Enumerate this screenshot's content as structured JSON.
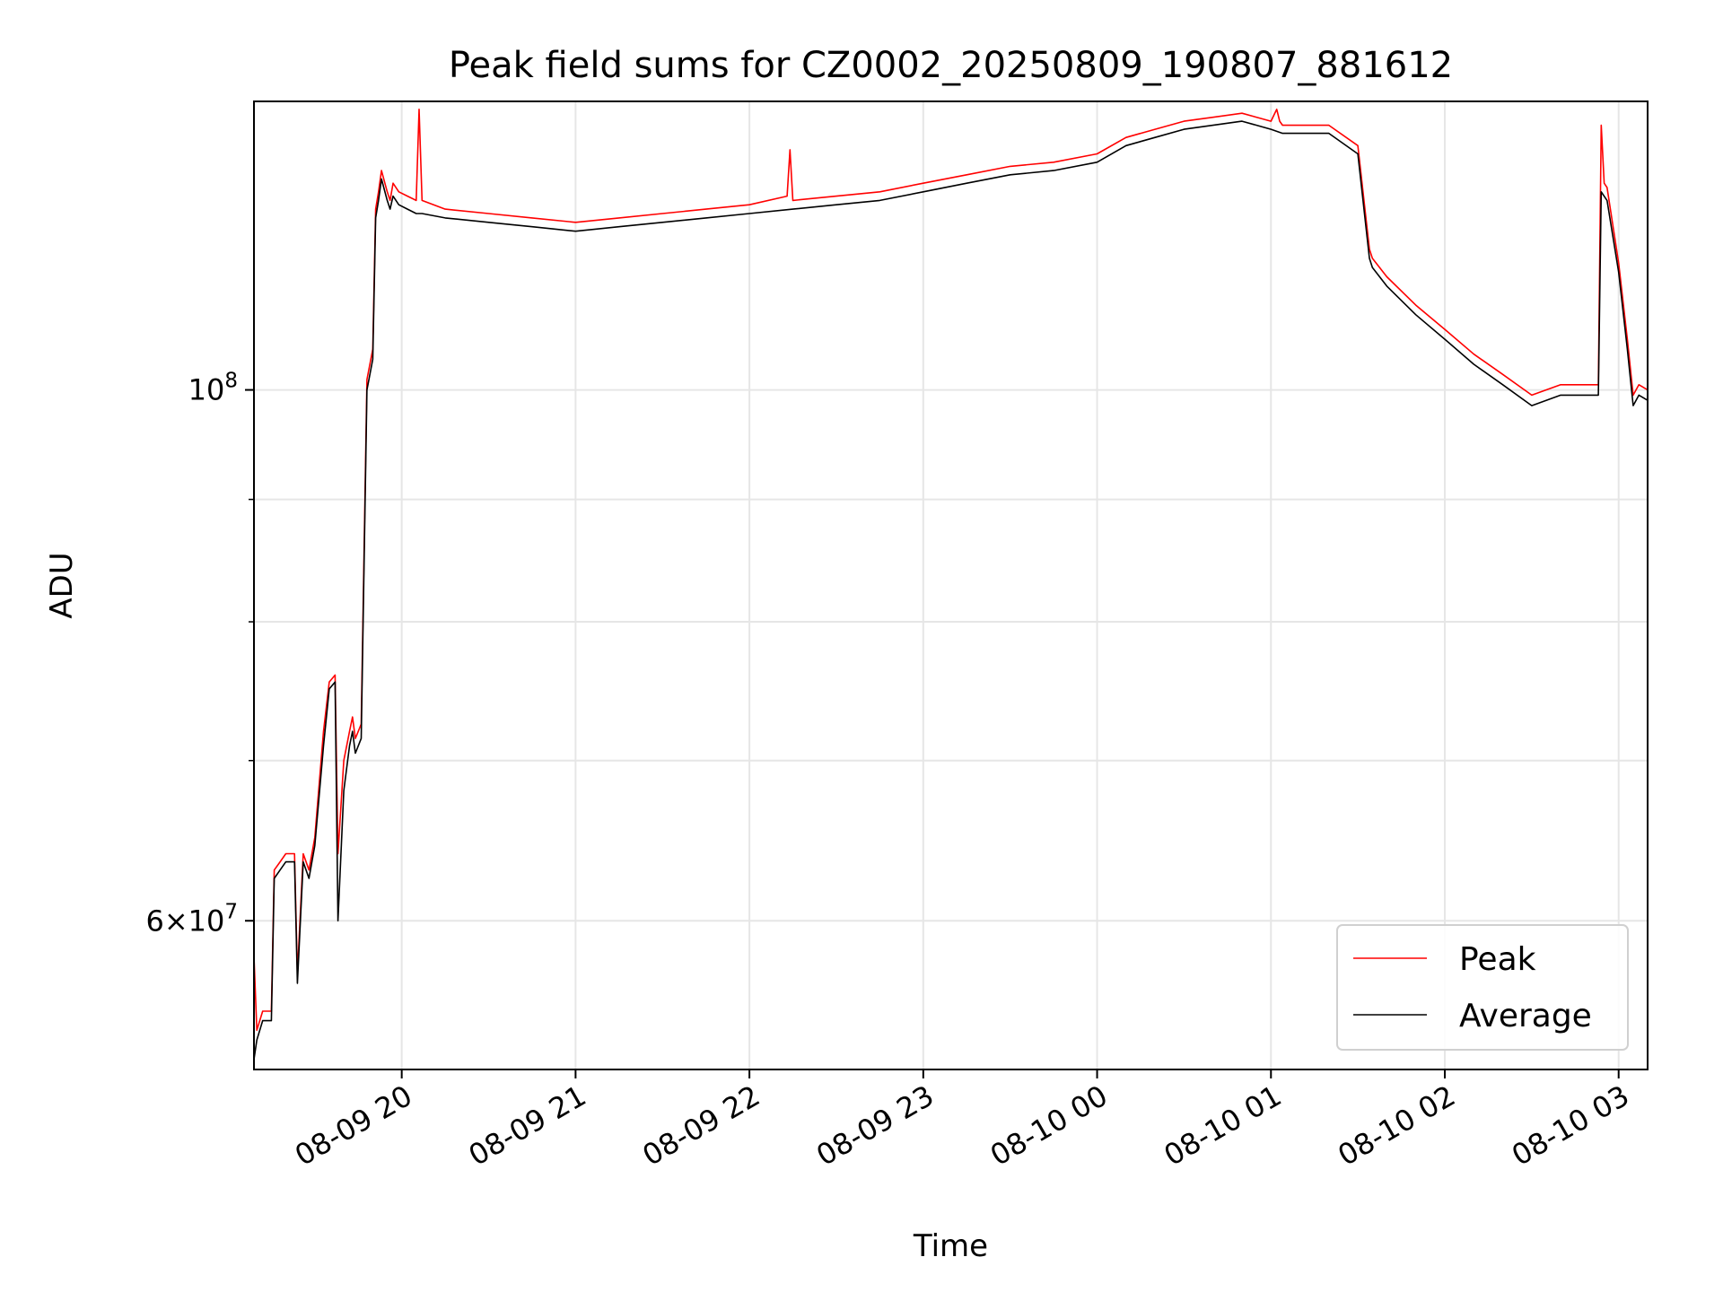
{
  "chart_data": {
    "type": "line",
    "title": "Peak field sums for CZ0002_20250809_190807_881612",
    "xlabel": "Time",
    "ylabel": "ADU",
    "y_scale": "log",
    "ylim": [
      52000000,
      132000000
    ],
    "xlim": [
      "2025-08-09 19:09",
      "2025-08-10 03:10"
    ],
    "grid": true,
    "legend": {
      "placement": "lower-right",
      "entries": [
        "Peak",
        "Average"
      ]
    },
    "x_ticks": [
      "08-09 20",
      "08-09 21",
      "08-09 22",
      "08-09 23",
      "08-10 00",
      "08-10 01",
      "08-10 02",
      "08-10 03"
    ],
    "x_tick_values": [
      "2025-08-09 20:00",
      "2025-08-09 21:00",
      "2025-08-09 22:00",
      "2025-08-09 23:00",
      "2025-08-10 00:00",
      "2025-08-10 01:00",
      "2025-08-10 02:00",
      "2025-08-10 03:00"
    ],
    "y_ticks": [
      {
        "value": 100000000,
        "base": "10",
        "exp": "8",
        "mantissa": ""
      },
      {
        "value": 60000000,
        "base": "10",
        "exp": "7",
        "mantissa": "6"
      }
    ],
    "y_minor_ticks": [
      70000000,
      80000000,
      90000000
    ],
    "series": [
      {
        "name": "Peak",
        "color": "#ff0000",
        "x": [
          "2025-08-09 19:09",
          "2025-08-09 19:10",
          "2025-08-09 19:12",
          "2025-08-09 19:15",
          "2025-08-09 19:16",
          "2025-08-09 19:18",
          "2025-08-09 19:20",
          "2025-08-09 19:23",
          "2025-08-09 19:24",
          "2025-08-09 19:26",
          "2025-08-09 19:28",
          "2025-08-09 19:30",
          "2025-08-09 19:33",
          "2025-08-09 19:35",
          "2025-08-09 19:37",
          "2025-08-09 19:38",
          "2025-08-09 19:40",
          "2025-08-09 19:42",
          "2025-08-09 19:43",
          "2025-08-09 19:44",
          "2025-08-09 19:46",
          "2025-08-09 19:48",
          "2025-08-09 19:50",
          "2025-08-09 19:51",
          "2025-08-09 19:52",
          "2025-08-09 19:53",
          "2025-08-09 19:55",
          "2025-08-09 19:56",
          "2025-08-09 19:57",
          "2025-08-09 19:59",
          "2025-08-09 20:02",
          "2025-08-09 20:05",
          "2025-08-09 20:06",
          "2025-08-09 20:07",
          "2025-08-09 20:15",
          "2025-08-09 20:30",
          "2025-08-09 20:45",
          "2025-08-09 21:00",
          "2025-08-09 21:15",
          "2025-08-09 21:30",
          "2025-08-09 21:45",
          "2025-08-09 22:00",
          "2025-08-09 22:13",
          "2025-08-09 22:14",
          "2025-08-09 22:15",
          "2025-08-09 22:30",
          "2025-08-09 22:45",
          "2025-08-09 23:00",
          "2025-08-09 23:15",
          "2025-08-09 23:30",
          "2025-08-09 23:45",
          "2025-08-10 00:00",
          "2025-08-10 00:10",
          "2025-08-10 00:20",
          "2025-08-10 00:30",
          "2025-08-10 00:40",
          "2025-08-10 00:50",
          "2025-08-10 01:00",
          "2025-08-10 01:02",
          "2025-08-10 01:03",
          "2025-08-10 01:04",
          "2025-08-10 01:10",
          "2025-08-10 01:20",
          "2025-08-10 01:30",
          "2025-08-10 01:34",
          "2025-08-10 01:35",
          "2025-08-10 01:40",
          "2025-08-10 01:50",
          "2025-08-10 02:00",
          "2025-08-10 02:10",
          "2025-08-10 02:20",
          "2025-08-10 02:30",
          "2025-08-10 02:40",
          "2025-08-10 02:53",
          "2025-08-10 02:54",
          "2025-08-10 02:55",
          "2025-08-10 02:56",
          "2025-08-10 03:00",
          "2025-08-10 03:03",
          "2025-08-10 03:05",
          "2025-08-10 03:07",
          "2025-08-10 03:10"
        ],
        "y": [
          58000000,
          54000000,
          55000000,
          55000000,
          63000000,
          63500000,
          64000000,
          64000000,
          57000000,
          64000000,
          63000000,
          65000000,
          72000000,
          75500000,
          76000000,
          64000000,
          70000000,
          72000000,
          73000000,
          71500000,
          72500000,
          101000000,
          104000000,
          119000000,
          121000000,
          123500000,
          121000000,
          120000000,
          122000000,
          121000000,
          120500000,
          120000000,
          131000000,
          120000000,
          119000000,
          118500000,
          118000000,
          117500000,
          118000000,
          118500000,
          119000000,
          119500000,
          120500000,
          126000000,
          120000000,
          120500000,
          121000000,
          122000000,
          123000000,
          124000000,
          124500000,
          125500000,
          127500000,
          128500000,
          129500000,
          130000000,
          130500000,
          129500000,
          131000000,
          129500000,
          129000000,
          129000000,
          129000000,
          126500000,
          114500000,
          113500000,
          111500000,
          108500000,
          106000000,
          103500000,
          101500000,
          99500000,
          100500000,
          100500000,
          129000000,
          122000000,
          121500000,
          113000000,
          105000000,
          99500000,
          100500000,
          100000000
        ]
      },
      {
        "name": "Average",
        "color": "#000000",
        "x": [
          "2025-08-09 19:09",
          "2025-08-09 19:10",
          "2025-08-09 19:12",
          "2025-08-09 19:15",
          "2025-08-09 19:16",
          "2025-08-09 19:18",
          "2025-08-09 19:20",
          "2025-08-09 19:23",
          "2025-08-09 19:24",
          "2025-08-09 19:26",
          "2025-08-09 19:28",
          "2025-08-09 19:30",
          "2025-08-09 19:33",
          "2025-08-09 19:35",
          "2025-08-09 19:37",
          "2025-08-09 19:38",
          "2025-08-09 19:40",
          "2025-08-09 19:42",
          "2025-08-09 19:43",
          "2025-08-09 19:44",
          "2025-08-09 19:46",
          "2025-08-09 19:48",
          "2025-08-09 19:50",
          "2025-08-09 19:51",
          "2025-08-09 19:52",
          "2025-08-09 19:53",
          "2025-08-09 19:55",
          "2025-08-09 19:56",
          "2025-08-09 19:57",
          "2025-08-09 19:59",
          "2025-08-09 20:02",
          "2025-08-09 20:05",
          "2025-08-09 20:07",
          "2025-08-09 20:15",
          "2025-08-09 20:30",
          "2025-08-09 20:45",
          "2025-08-09 21:00",
          "2025-08-09 21:15",
          "2025-08-09 21:30",
          "2025-08-09 21:45",
          "2025-08-09 22:00",
          "2025-08-09 22:15",
          "2025-08-09 22:30",
          "2025-08-09 22:45",
          "2025-08-09 23:00",
          "2025-08-09 23:15",
          "2025-08-09 23:30",
          "2025-08-09 23:45",
          "2025-08-10 00:00",
          "2025-08-10 00:10",
          "2025-08-10 00:20",
          "2025-08-10 00:30",
          "2025-08-10 00:40",
          "2025-08-10 00:50",
          "2025-08-10 01:00",
          "2025-08-10 01:04",
          "2025-08-10 01:10",
          "2025-08-10 01:20",
          "2025-08-10 01:30",
          "2025-08-10 01:34",
          "2025-08-10 01:35",
          "2025-08-10 01:40",
          "2025-08-10 01:50",
          "2025-08-10 02:00",
          "2025-08-10 02:10",
          "2025-08-10 02:20",
          "2025-08-10 02:30",
          "2025-08-10 02:40",
          "2025-08-10 02:53",
          "2025-08-10 02:54",
          "2025-08-10 02:56",
          "2025-08-10 03:00",
          "2025-08-10 03:03",
          "2025-08-10 03:05",
          "2025-08-10 03:07",
          "2025-08-10 03:10"
        ],
        "y": [
          52500000,
          53500000,
          54500000,
          54500000,
          62500000,
          63000000,
          63500000,
          63500000,
          56500000,
          63500000,
          62500000,
          64500000,
          71000000,
          75000000,
          75500000,
          60000000,
          68000000,
          71000000,
          72000000,
          70500000,
          71500000,
          100000000,
          103000000,
          118000000,
          120000000,
          122500000,
          120000000,
          119000000,
          120500000,
          119500000,
          119000000,
          118500000,
          118500000,
          118000000,
          117500000,
          117000000,
          116500000,
          117000000,
          117500000,
          118000000,
          118500000,
          119000000,
          119500000,
          120000000,
          121000000,
          122000000,
          123000000,
          123500000,
          124500000,
          126500000,
          127500000,
          128500000,
          129000000,
          129500000,
          128500000,
          128000000,
          128000000,
          128000000,
          125500000,
          113500000,
          112500000,
          110500000,
          107500000,
          105000000,
          102500000,
          100500000,
          98500000,
          99500000,
          99500000,
          121000000,
          120000000,
          112000000,
          104000000,
          98500000,
          99500000,
          99000000
        ]
      }
    ]
  }
}
